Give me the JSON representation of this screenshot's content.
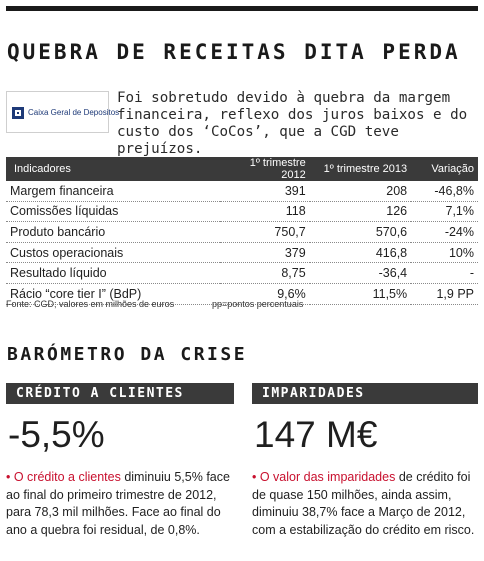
{
  "headline": "QUEBRA DE RECEITAS DITA PERDA",
  "logo": {
    "text": "Caixa Geral de Depositos"
  },
  "lede": "Foi sobretudo devido à quebra da margem financeira, reflexo dos juros baixos e do custo dos ‘CoCos’, que a CGD teve prejuízos.",
  "table": {
    "headers": [
      "Indicadores",
      "1º trimestre 2012",
      "1º trimestre 2013",
      "Variação"
    ],
    "rows": [
      [
        "Margem financeira",
        "391",
        "208",
        "-46,8%"
      ],
      [
        "Comissões líquidas",
        "118",
        "126",
        "7,1%"
      ],
      [
        "Produto bancário",
        "750,7",
        "570,6",
        "-24%"
      ],
      [
        "Custos operacionais",
        "379",
        "416,8",
        "10%"
      ],
      [
        "Resultado líquido",
        "8,75",
        "-36,4",
        "-"
      ],
      [
        "Rácio “core tier I” (BdP)",
        "9,6%",
        "11,5%",
        "1,9 PP"
      ]
    ]
  },
  "footnote": {
    "source": "Fonte: CGD; valores em milhões de euros",
    "pp": "pp=pontos percentuais"
  },
  "section_title": "BARÓMETRO DA CRISE",
  "boxes": {
    "left": {
      "title": "CRÉDITO A CLIENTES",
      "value": "-5,5%",
      "bullet": "• ",
      "lead": "O crédito a clientes",
      "text": " diminuiu 5,5% face ao final do primeiro trimestre de 2012, para 78,3 mil milhões. Face ao final do ano a quebra foi residual, de 0,8%."
    },
    "right": {
      "title": "IMPARIDADES",
      "value": "147 M€",
      "bullet": "• ",
      "lead_a": "O valor das ",
      "lead_b": "imparidades",
      "text": " de crédito foi de quase 150 milhões, ainda assim, diminuiu 38,7% face a Março de 2012, com a estabilização do crédito em risco."
    }
  },
  "colors": {
    "accent": "#c8102e",
    "header_bg": "#3a3a3a",
    "brand_blue": "#1e3a78"
  }
}
